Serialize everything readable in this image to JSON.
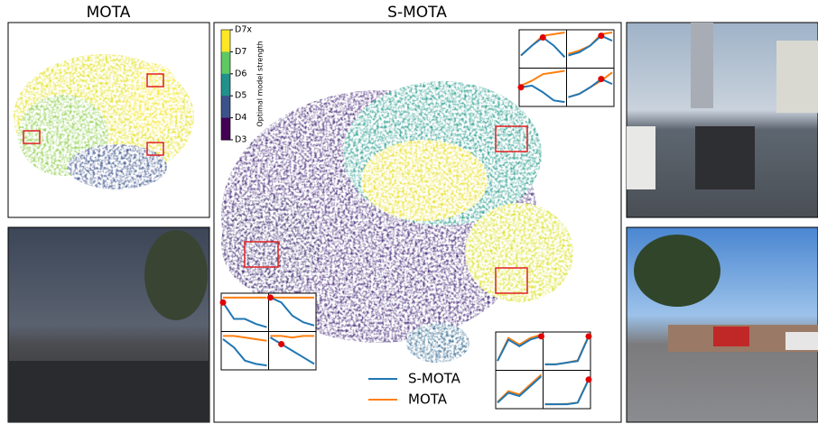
{
  "chart_data": {
    "type": "scatter",
    "panel_titles": [
      "MOTA",
      "S-MOTA"
    ],
    "colorbar": {
      "label": "Optimal model strength",
      "ticks": [
        "D7x",
        "D7",
        "D6",
        "D5",
        "D4",
        "D3"
      ],
      "colors": [
        "#fde725",
        "#5ec962",
        "#21918c",
        "#3b528b",
        "#440154"
      ]
    },
    "series": [
      {
        "name": "S-MOTA",
        "color": "#1f77b4"
      },
      {
        "name": "MOTA",
        "color": "#ff7f0e"
      }
    ],
    "insets": [
      {
        "panels": [
          {
            "values": [
              [
                0.3,
                0.6,
                0.85,
                0.6,
                0.25
              ],
              [
                0.3,
                0.6,
                0.9,
                0.95,
                1
              ]
            ],
            "highlight": 2
          },
          {
            "values": [
              [
                0.3,
                0.4,
                0.6,
                0.9,
                0.75
              ],
              [
                0.35,
                0.45,
                0.6,
                0.95,
                1
              ]
            ],
            "highlight": 3
          },
          {
            "values": [
              [
                0.5,
                0.55,
                0.35,
                0.1,
                0.05
              ],
              [
                0.55,
                0.7,
                0.9,
                0.95,
                1
              ]
            ],
            "highlight": 0
          },
          {
            "values": [
              [
                0.2,
                0.3,
                0.5,
                0.75,
                0.6
              ],
              [
                0.2,
                0.3,
                0.5,
                0.7,
                0.95
              ]
            ],
            "highlight": 3
          }
        ]
      },
      {
        "panels": [
          {
            "values": [
              [
                0.8,
                0.3,
                0.3,
                0.15,
                0.05
              ],
              [
                0.95,
                0.95,
                0.95,
                0.95,
                0.95
              ]
            ],
            "highlight": 0
          },
          {
            "values": [
              [
                0.95,
                0.8,
                0.4,
                0.2,
                0.1
              ],
              [
                0.95,
                0.95,
                0.95,
                0.95,
                0.95
              ]
            ],
            "highlight": 0
          },
          {
            "values": [
              [
                0.85,
                0.6,
                0.2,
                0.1,
                0.05
              ],
              [
                0.95,
                0.95,
                0.9,
                0.85,
                0.8
              ]
            ],
            "highlight": null
          },
          {
            "values": [
              [
                0.9,
                0.7,
                0.5,
                0.3,
                0.1
              ],
              [
                0.95,
                0.95,
                0.9,
                0.95,
                0.95
              ]
            ],
            "highlight": 1
          }
        ]
      },
      {
        "panels": [
          {
            "values": [
              [
                0.2,
                0.85,
                0.65,
                0.85,
                0.95
              ],
              [
                0.2,
                0.9,
                0.7,
                0.9,
                1
              ]
            ],
            "highlight": 4
          },
          {
            "values": [
              [
                0.1,
                0.1,
                0.15,
                0.2,
                0.95
              ],
              [
                0.1,
                0.1,
                0.15,
                0.22,
                0.97
              ]
            ],
            "highlight": 4
          },
          {
            "values": [
              [
                0.1,
                0.4,
                0.3,
                0.6,
                0.9
              ],
              [
                0.12,
                0.45,
                0.35,
                0.65,
                0.95
              ]
            ],
            "highlight": null
          },
          {
            "values": [
              [
                0.05,
                0.05,
                0.05,
                0.1,
                0.8
              ],
              [
                0.05,
                0.05,
                0.06,
                0.1,
                0.82
              ]
            ],
            "highlight": 4
          }
        ]
      }
    ]
  }
}
